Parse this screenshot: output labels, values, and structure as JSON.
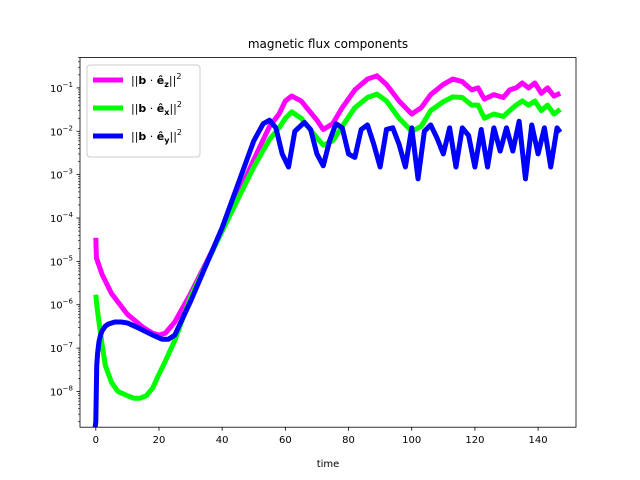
{
  "chart_data": {
    "type": "line",
    "title": "magnetic flux components",
    "xlabel": "time",
    "ylabel": "",
    "xlim": [
      -5,
      152
    ],
    "ylim": [
      1.5e-09,
      0.5
    ],
    "yscale": "log",
    "grid": false,
    "legend_position": "top-left",
    "xticks": [
      0,
      20,
      40,
      60,
      80,
      100,
      120,
      140
    ],
    "xtick_labels": [
      "0",
      "20",
      "40",
      "60",
      "80",
      "100",
      "120",
      "140"
    ],
    "yticks": [
      1e-08,
      1e-07,
      1e-06,
      1e-05,
      0.0001,
      0.001,
      0.01,
      0.1
    ],
    "ytick_labels": [
      {
        "base": "10",
        "exp": "−8"
      },
      {
        "base": "10",
        "exp": "−7"
      },
      {
        "base": "10",
        "exp": "−6"
      },
      {
        "base": "10",
        "exp": "−5"
      },
      {
        "base": "10",
        "exp": "−4"
      },
      {
        "base": "10",
        "exp": "−3"
      },
      {
        "base": "10",
        "exp": "−2"
      },
      {
        "base": "10",
        "exp": "−1"
      }
    ],
    "series": [
      {
        "name": "||b · ê_z||²",
        "legend": {
          "pre": "||",
          "vec": "b",
          "dot": " · ",
          "unit": "ê",
          "sub": "z",
          "post": "||",
          "sup": "2"
        },
        "color": "#ff00ff",
        "x": [
          0,
          0.2,
          2,
          5,
          10,
          15,
          18,
          20,
          22,
          25,
          30,
          40,
          50,
          55,
          58,
          60,
          62,
          65,
          70,
          72,
          75,
          78,
          82,
          86,
          89,
          92,
          96,
          100,
          103,
          106,
          110,
          113,
          116,
          119,
          121,
          123,
          126,
          129,
          131,
          133,
          135,
          137,
          139,
          141,
          143,
          145,
          147
        ],
        "y": [
          3.5e-05,
          1.2e-05,
          5e-06,
          1.8e-06,
          6e-07,
          3e-07,
          2.2e-07,
          2e-07,
          2.2e-07,
          4e-07,
          1.8e-06,
          5e-05,
          0.0022,
          0.013,
          0.025,
          0.05,
          0.065,
          0.05,
          0.018,
          0.011,
          0.015,
          0.035,
          0.09,
          0.16,
          0.19,
          0.12,
          0.05,
          0.025,
          0.035,
          0.07,
          0.12,
          0.16,
          0.14,
          0.09,
          0.1,
          0.055,
          0.07,
          0.06,
          0.09,
          0.1,
          0.13,
          0.1,
          0.13,
          0.075,
          0.1,
          0.065,
          0.075
        ]
      },
      {
        "name": "||b · ê_x||²",
        "legend": {
          "pre": "||",
          "vec": "b",
          "dot": " · ",
          "unit": "ê",
          "sub": "x",
          "post": "||",
          "sup": "2"
        },
        "color": "#00ff00",
        "x": [
          0,
          0.3,
          1,
          2,
          3,
          5,
          7,
          10,
          12,
          14,
          16,
          18,
          20,
          22,
          25,
          30,
          40,
          50,
          55,
          58,
          60,
          62,
          65,
          70,
          72,
          75,
          78,
          82,
          86,
          89,
          92,
          96,
          100,
          103,
          106,
          110,
          113,
          116,
          119,
          121,
          123,
          126,
          129,
          131,
          133,
          135,
          137,
          139,
          141,
          143,
          145,
          147
        ],
        "y": [
          1.7e-06,
          1e-06,
          4e-07,
          1.2e-07,
          4e-08,
          1.6e-08,
          1e-08,
          8e-09,
          7e-09,
          7e-09,
          8e-09,
          1.2e-08,
          2.5e-08,
          5e-08,
          1.5e-07,
          1.5e-06,
          5e-05,
          0.0015,
          0.0065,
          0.012,
          0.02,
          0.028,
          0.02,
          0.007,
          0.0048,
          0.006,
          0.013,
          0.035,
          0.06,
          0.072,
          0.05,
          0.02,
          0.01,
          0.013,
          0.03,
          0.048,
          0.062,
          0.06,
          0.04,
          0.04,
          0.02,
          0.025,
          0.022,
          0.03,
          0.04,
          0.05,
          0.04,
          0.05,
          0.03,
          0.04,
          0.025,
          0.032
        ]
      },
      {
        "name": "||b · ê_y||²",
        "legend": {
          "pre": "||",
          "vec": "b",
          "dot": " · ",
          "unit": "ê",
          "sub": "y",
          "post": "||",
          "sup": "2"
        },
        "color": "#0000ff",
        "x": [
          -0.2,
          0,
          0.3,
          0.6,
          1,
          1.5,
          2,
          3,
          4,
          6,
          8,
          10,
          14,
          18,
          21,
          23,
          25,
          30,
          40,
          50,
          53,
          55,
          57,
          59,
          61,
          63,
          66,
          68,
          70,
          72,
          74,
          76,
          78,
          80,
          82,
          84,
          86,
          88,
          90,
          92,
          94,
          96,
          98,
          100,
          102,
          104,
          106,
          108,
          110,
          112,
          114,
          116,
          118,
          120,
          122,
          124,
          126,
          128,
          130,
          132,
          134,
          136,
          138,
          140,
          142,
          144,
          146,
          147
        ],
        "y": [
          1.5e-09,
          2e-09,
          4e-08,
          8e-08,
          1.4e-07,
          2e-07,
          2.5e-07,
          3.2e-07,
          3.6e-07,
          4e-07,
          4e-07,
          3.8e-07,
          2.8e-07,
          2e-07,
          1.6e-07,
          1.6e-07,
          2e-07,
          1.2e-06,
          6e-05,
          0.006,
          0.015,
          0.018,
          0.012,
          0.003,
          0.0015,
          0.01,
          0.016,
          0.011,
          0.003,
          0.0016,
          0.006,
          0.015,
          0.012,
          0.003,
          0.0025,
          0.011,
          0.014,
          0.005,
          0.0015,
          0.011,
          0.012,
          0.005,
          0.0015,
          0.012,
          0.0008,
          0.01,
          0.014,
          0.007,
          0.003,
          0.012,
          0.0015,
          0.012,
          0.008,
          0.0015,
          0.011,
          0.0015,
          0.012,
          0.0035,
          0.012,
          0.0035,
          0.017,
          0.0008,
          0.014,
          0.003,
          0.012,
          0.0015,
          0.012,
          0.0095
        ]
      }
    ]
  }
}
